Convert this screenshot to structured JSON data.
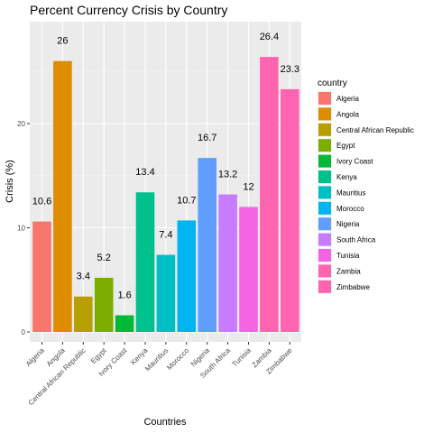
{
  "chart_data": {
    "type": "bar",
    "title": "Percent Currency Crisis by Country",
    "xlabel": "Countries",
    "ylabel": "Crisis (%)",
    "ylim": [
      0,
      28.5
    ],
    "yticks": [
      0,
      10,
      20
    ],
    "grid": true,
    "legend": {
      "title": "country",
      "placement": "right"
    },
    "categories": [
      "Algeria",
      "Angola",
      "Central African Republic",
      "Egypt",
      "Ivory Coast",
      "Kenya",
      "Mauritius",
      "Morocco",
      "Nigeria",
      "South Africa",
      "Tunisia",
      "Zambia",
      "Zimbabwe"
    ],
    "values": [
      10.6,
      26,
      3.4,
      5.2,
      1.6,
      13.4,
      7.4,
      10.7,
      16.7,
      13.2,
      12,
      26.4,
      23.3
    ],
    "value_labels": [
      "10.6",
      "26",
      "3.4",
      "5.2",
      "1.6",
      "13.4",
      "7.4",
      "10.7",
      "16.7",
      "13.2",
      "12",
      "26.4",
      "23.3"
    ],
    "colors": [
      "#F8766D",
      "#DE8C00",
      "#B79F00",
      "#7CAE00",
      "#00BA38",
      "#00C08B",
      "#00BFC4",
      "#00B4F0",
      "#619CFF",
      "#C77CFF",
      "#F564E3",
      "#FF64B0",
      "#FF64B0"
    ]
  }
}
